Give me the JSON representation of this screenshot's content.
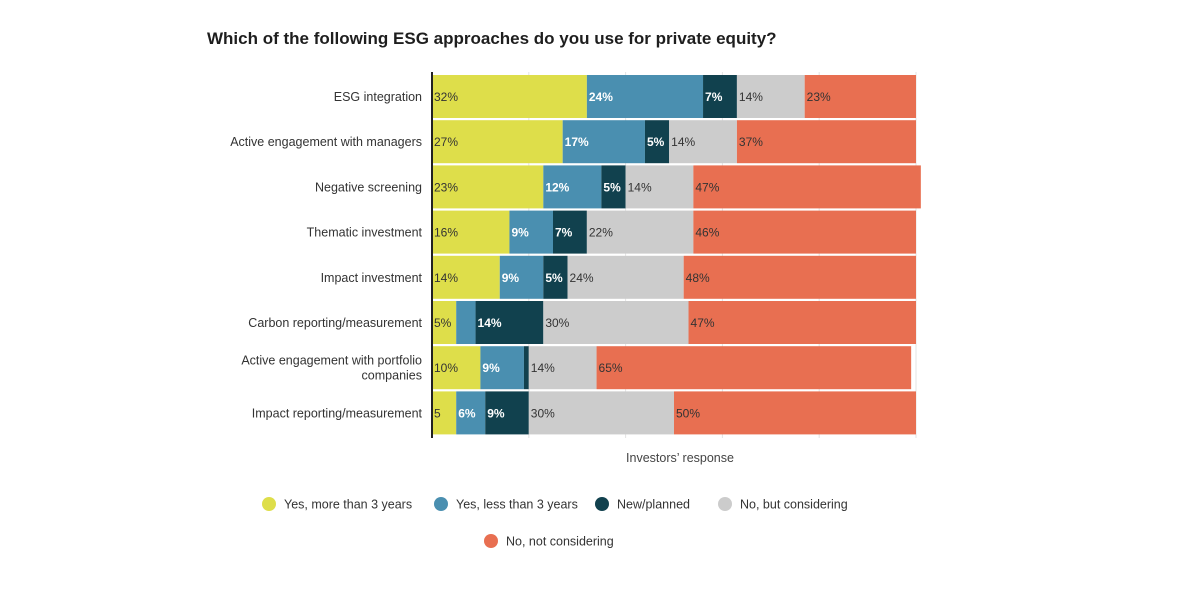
{
  "chart_data": {
    "type": "bar",
    "orientation": "horizontal",
    "stacked": true,
    "title": "Which of the following ESG approaches do you use for private equity?",
    "xlabel": "Investors’ response",
    "ylabel": "",
    "xlim": [
      0,
      100
    ],
    "grid": true,
    "legend_position": "bottom",
    "categories": [
      [
        "ESG integration"
      ],
      [
        "Active engagement with managers"
      ],
      [
        "Negative screening"
      ],
      [
        "Thematic investment"
      ],
      [
        "Impact investment"
      ],
      [
        "Carbon reporting/measurement"
      ],
      [
        "Active engagement with portfolio",
        "companies"
      ],
      [
        "Impact reporting/measurement"
      ]
    ],
    "series": [
      {
        "name": "Yes, more than 3 years",
        "color": "#dede4a",
        "label_color": "#333333",
        "values": [
          32,
          27,
          23,
          16,
          14,
          5,
          10,
          5
        ],
        "labels": [
          "32%",
          "27%",
          "23%",
          "16%",
          "14%",
          "5%",
          "10%",
          "5"
        ]
      },
      {
        "name": "Yes, less than 3 years",
        "color": "#4a8fb0",
        "label_color": "#ffffff",
        "values": [
          24,
          17,
          12,
          9,
          9,
          4,
          9,
          6
        ],
        "labels": [
          "24%",
          "17%",
          "12%",
          "9%",
          "9%",
          "",
          "9%",
          "6%"
        ]
      },
      {
        "name": "New/planned",
        "color": "#11414e",
        "label_color": "#ffffff",
        "values": [
          7,
          5,
          5,
          7,
          5,
          14,
          1,
          9
        ],
        "labels": [
          "7%",
          "5%",
          "5%",
          "7%",
          "5%",
          "14%",
          "",
          "9%"
        ]
      },
      {
        "name": "No, but considering",
        "color": "#cccccc",
        "label_color": "#333333",
        "values": [
          14,
          14,
          14,
          22,
          24,
          30,
          14,
          30
        ],
        "labels": [
          "14%",
          "14%",
          "14%",
          "22%",
          "24%",
          "30%",
          "14%",
          "30%"
        ]
      },
      {
        "name": "No, not considering",
        "color": "#e86f51",
        "label_color": "#333333",
        "values": [
          23,
          37,
          47,
          46,
          48,
          47,
          65,
          50
        ],
        "labels": [
          "23%",
          "37%",
          "47%",
          "46%",
          "48%",
          "47%",
          "65%",
          "50%"
        ]
      }
    ]
  }
}
